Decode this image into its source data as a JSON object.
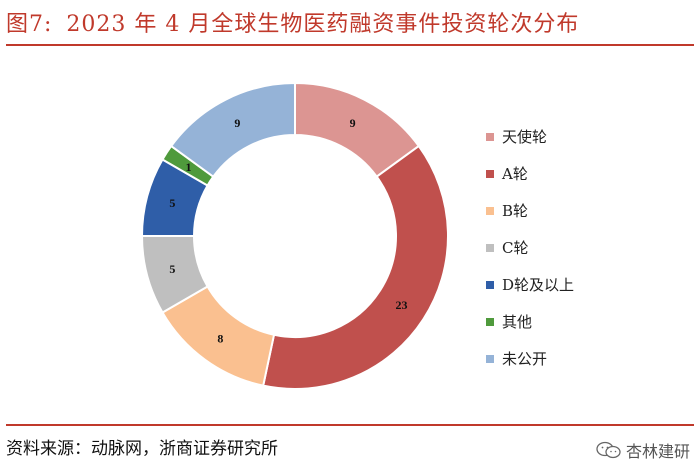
{
  "header": {
    "fig_label": "图7:",
    "title": "2023 年 4 月全球生物医药融资事件投资轮次分布"
  },
  "footer": {
    "source": "资料来源：动脉网，浙商证券研究所",
    "watermark": "杏林建研"
  },
  "colors": {
    "accent": "#c0392b"
  },
  "chart_data": {
    "type": "pie",
    "donut": true,
    "title": "",
    "legend_position": "right",
    "categories": [
      "天使轮",
      "A轮",
      "B轮",
      "C轮",
      "D轮及以上",
      "其他",
      "未公开"
    ],
    "values": [
      9,
      23,
      8,
      5,
      5,
      1,
      9
    ],
    "colors": [
      "#dc9592",
      "#c0504d",
      "#fac090",
      "#bfbfbf",
      "#2f5ea8",
      "#4f9a3c",
      "#95b3d7"
    ]
  }
}
